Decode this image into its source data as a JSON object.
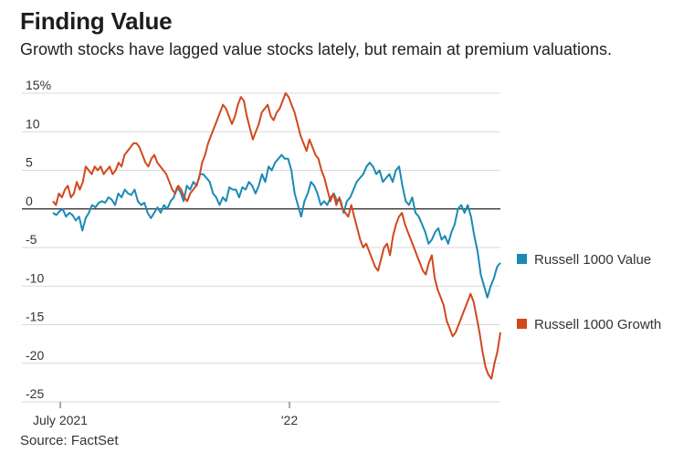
{
  "title": "Finding Value",
  "subtitle": "Growth stocks have lagged value stocks lately, but remain at premium valuations.",
  "source": "Source: FactSet",
  "chart_data": {
    "type": "line",
    "x_ticks": [
      "July 2021",
      "'22"
    ],
    "y_ticks": [
      "15%",
      "10",
      "5",
      "0",
      "-5",
      "-10",
      "-15",
      "-20",
      "-25"
    ],
    "ylim": [
      -25,
      15
    ],
    "grid": true,
    "legend_placement": "right",
    "series": [
      {
        "name": "Russell 1000 Value",
        "color": "#1a8ab4",
        "values": [
          -0.5,
          -0.8,
          -0.3,
          0,
          -1,
          -0.5,
          -0.8,
          -1.5,
          -1,
          -2.8,
          -1.2,
          -0.5,
          0.5,
          0.2,
          0.8,
          1,
          0.8,
          1.5,
          1.2,
          0.5,
          2,
          1.5,
          2.5,
          2,
          1.8,
          2.5,
          1,
          0.5,
          0.8,
          -0.5,
          -1.2,
          -0.5,
          0.2,
          -0.5,
          0.5,
          0,
          1,
          1.5,
          2.8,
          2.2,
          1,
          3,
          2.5,
          3.5,
          3,
          4.5,
          4.5,
          4,
          3.5,
          2,
          1.5,
          0.5,
          1.5,
          1,
          2.8,
          2.5,
          2.5,
          1.5,
          2.8,
          2.5,
          3.5,
          3,
          2,
          3,
          4.5,
          3.5,
          5.5,
          5,
          6,
          6.5,
          7,
          6.5,
          6.5,
          5,
          2,
          0.5,
          -1,
          1,
          2,
          3.5,
          3,
          2,
          0.5,
          1,
          0.5,
          1.5,
          2,
          1,
          1.2,
          -0.5,
          1,
          1.5,
          2.5,
          3.5,
          4,
          4.5,
          5.5,
          6,
          5.5,
          4.5,
          5,
          3.5,
          4,
          4.5,
          3.5,
          5,
          5.5,
          3,
          1,
          0.5,
          1.5,
          -0.5,
          -1,
          -2,
          -3,
          -4.5,
          -4,
          -3,
          -2.5,
          -4,
          -3.5,
          -4.5,
          -3,
          -2,
          0,
          0.5,
          -0.5,
          0.5,
          -1,
          -3.5,
          -5.5,
          -8.5,
          -10,
          -11.5,
          -10,
          -9,
          -7.5,
          -7
        ],
        "legend_label": "Russell 1000 Value"
      },
      {
        "name": "Russell 1000 Growth",
        "color": "#d2481d",
        "values": [
          1,
          0.5,
          2,
          1.5,
          2.5,
          3,
          1.5,
          2,
          3.5,
          2.5,
          3.5,
          5.5,
          5,
          4.5,
          5.5,
          5,
          5.5,
          4.5,
          5,
          5.5,
          4.5,
          5,
          6,
          5.5,
          7,
          7.5,
          8,
          8.5,
          8.5,
          8,
          7,
          6,
          5.5,
          6.5,
          7,
          6,
          5.5,
          5,
          4.5,
          3.5,
          2.5,
          2,
          3,
          2.5,
          1.5,
          1,
          2,
          2.5,
          3,
          4,
          6,
          7,
          8.5,
          9.5,
          10.5,
          11.5,
          12.5,
          13.5,
          13,
          12,
          11,
          12,
          13.5,
          14.5,
          14,
          12,
          10.5,
          9,
          10,
          11,
          12.5,
          13,
          13.5,
          12,
          11.5,
          12.5,
          13,
          14,
          15,
          14.5,
          13.5,
          12.5,
          11,
          9.5,
          8.5,
          7.5,
          9,
          8,
          7,
          6.5,
          5,
          4,
          2.5,
          1,
          2,
          0.5,
          1.5,
          0,
          -0.5,
          -1,
          0.5,
          -1,
          -2.5,
          -4,
          -5,
          -4.5,
          -5.5,
          -6.5,
          -7.5,
          -8,
          -6.5,
          -5,
          -4.5,
          -6,
          -3.5,
          -2,
          -1,
          -0.5,
          -2,
          -3,
          -4,
          -5,
          -6,
          -7,
          -8,
          -8.5,
          -7,
          -6,
          -9,
          -10.5,
          -11.5,
          -12.5,
          -14.5,
          -15.5,
          -16.5,
          -16,
          -15,
          -14,
          -13,
          -12,
          -11,
          -12,
          -14,
          -16,
          -18.5,
          -20.5,
          -21.5,
          -22,
          -20,
          -18.5,
          -16
        ],
        "legend_label": "Russell 1000 Growth"
      }
    ]
  }
}
